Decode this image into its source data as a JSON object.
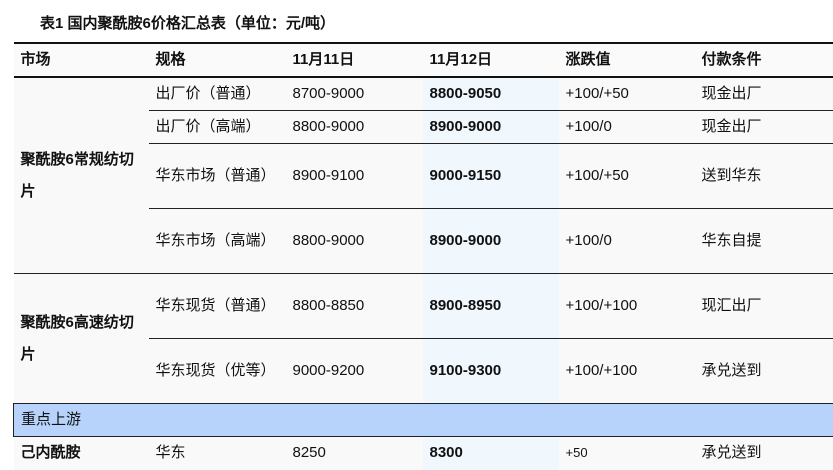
{
  "title": "表1 国内聚酰胺6价格汇总表（单位：元/吨）",
  "headers": [
    "市场",
    "规格",
    "11月11日",
    "11月12日",
    "涨跌值",
    "付款条件"
  ],
  "groups": [
    {
      "market": "聚酰胺6常规纺切片",
      "rows": [
        {
          "spec": "出厂价（普通）",
          "d1": "8700-9000",
          "d2": "8800-9050",
          "change": "+100/+50",
          "payment": "现金出厂"
        },
        {
          "spec": "出厂价（高端）",
          "d1": "8800-9000",
          "d2": "8900-9000",
          "change": "+100/0",
          "payment": "现金出厂"
        },
        {
          "spec": "华东市场（普通）",
          "d1": "8900-9100",
          "d2": "9000-9150",
          "change": "+100/+50",
          "payment": "送到华东"
        },
        {
          "spec": "华东市场（高端）",
          "d1": "8800-9000",
          "d2": "8900-9000",
          "change": "+100/0",
          "payment": "华东自提"
        }
      ]
    },
    {
      "market": "聚酰胺6高速纺切片",
      "rows": [
        {
          "spec": "华东现货（普通）",
          "d1": "8800-8850",
          "d2": "8900-8950",
          "change": "+100/+100",
          "payment": "现汇出厂"
        },
        {
          "spec": "华东现货（优等）",
          "d1": "9000-9200",
          "d2": "9100-9300",
          "change": "+100/+100",
          "payment": "承兑送到"
        }
      ]
    }
  ],
  "section": "重点上游",
  "upstream": {
    "market": "己内酰胺",
    "spec": "华东",
    "d1": "8250",
    "d2": "8300",
    "change": "+50",
    "payment": "承兑送到"
  },
  "colors": {
    "highlight_column": "#f0f7fd",
    "section_bg": "#b7d3fb"
  }
}
